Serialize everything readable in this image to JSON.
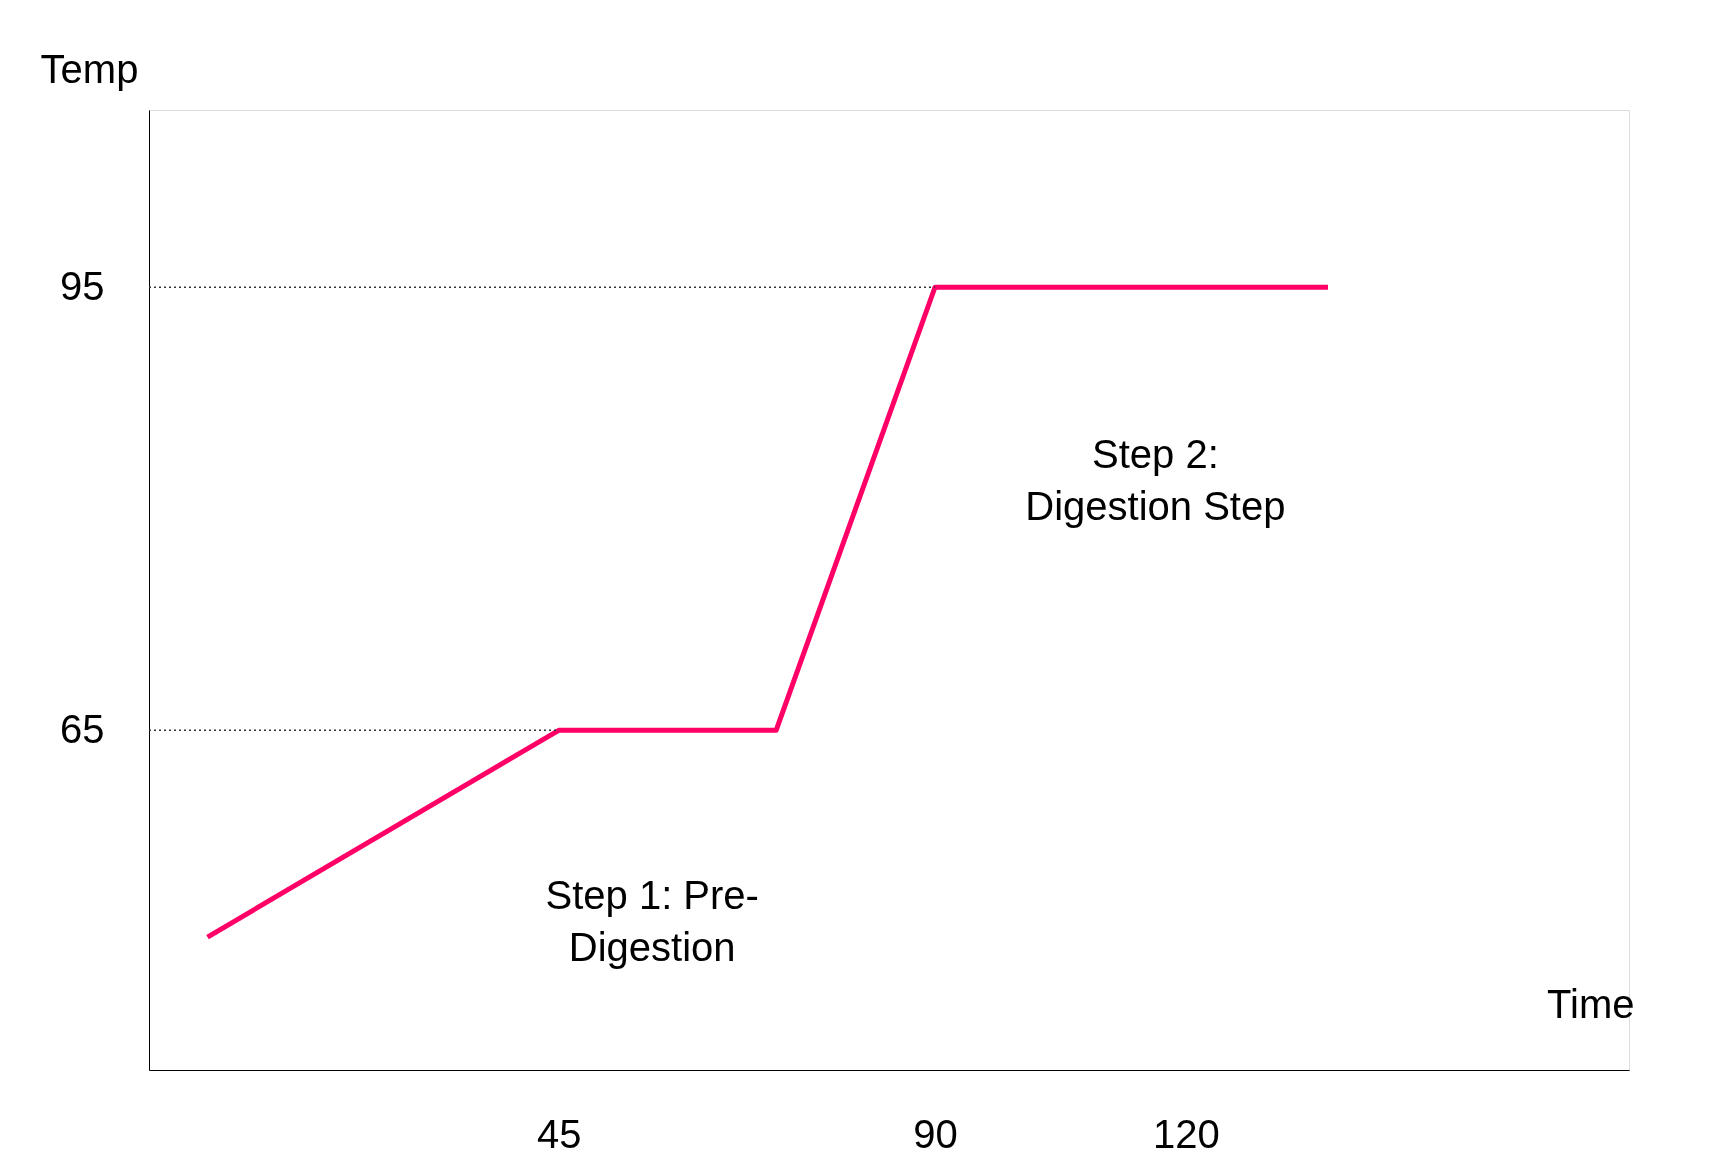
{
  "chart_data": {
    "type": "line",
    "xlabel": "Time",
    "ylabel": "Temp",
    "x": [
      3,
      45,
      71,
      90,
      137
    ],
    "series": [
      {
        "color": "#ff0066",
        "values": [
          51,
          65,
          65,
          95,
          95
        ]
      }
    ],
    "xlim": [
      -4,
      173
    ],
    "ylim": [
      42,
      107
    ],
    "xticks": [
      45,
      90,
      120
    ],
    "yticks": [
      65,
      95
    ],
    "grid": false,
    "marker": "none",
    "line_style": "solid",
    "ref_lines": [
      {
        "axis": "y",
        "value": 65,
        "color": "#333333",
        "line_style": "dotted"
      },
      {
        "axis": "y",
        "value": 95,
        "color": "#333333",
        "line_style": "dotted"
      }
    ],
    "annotations": [
      "Step 1: Pre-\nDigestion",
      "Step 2:\nDigestion Step"
    ]
  }
}
